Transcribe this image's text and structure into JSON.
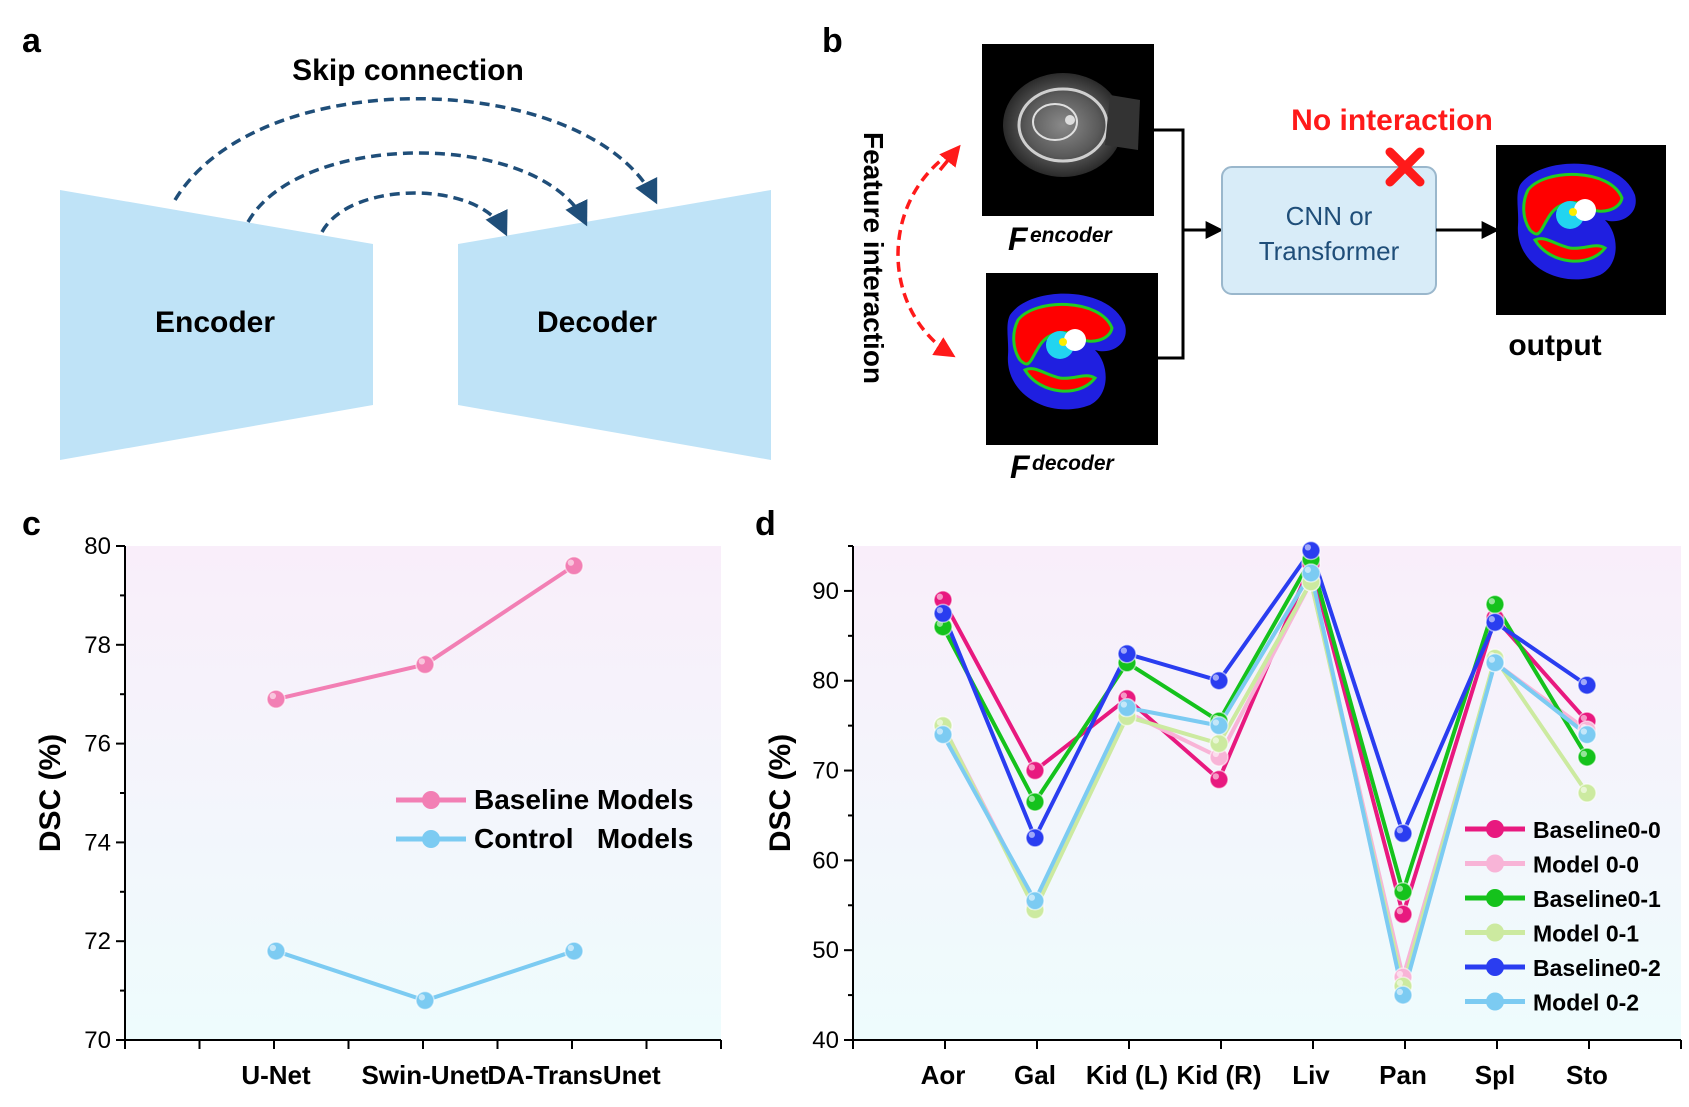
{
  "panels": {
    "a": {
      "letter": "a",
      "skip_label": "Skip connection",
      "encoder_label": "Encoder",
      "decoder_label": "Decoder",
      "colors": {
        "block": "#bfe3f7",
        "arrow": "#1f4e79"
      }
    },
    "b": {
      "letter": "b",
      "feature_interaction_label": "Feature interaction",
      "enc_F": "F",
      "enc_sup": "encoder",
      "dec_F": "F",
      "dec_sup": "decoder",
      "no_interaction_label": "No interaction",
      "cnn_line1": "CNN or",
      "cnn_line2": "Transformer",
      "output_label": "output",
      "colors": {
        "red": "#ff1a1a",
        "box_fill": "#d8ecf8",
        "box_text": "#1f4e79"
      }
    },
    "c": {
      "letter": "c"
    },
    "d": {
      "letter": "d"
    }
  },
  "chart_data": [
    {
      "id": "c",
      "type": "line",
      "categories": [
        "U-Net",
        "Swin-Unet",
        "DA-TransUnet"
      ],
      "series": [
        {
          "name": "Baseline Models",
          "values": [
            76.9,
            77.6,
            79.6
          ],
          "color": "#f27fb4"
        },
        {
          "name": "Control   Models",
          "values": [
            71.8,
            70.8,
            71.8
          ],
          "color": "#7ccbf2"
        }
      ],
      "ylabel": "DSC (%)",
      "ylim": [
        70,
        80
      ],
      "yticks": [
        70,
        72,
        74,
        76,
        78,
        80
      ],
      "legend": "center-right",
      "background_gradient": [
        "#f9eefa",
        "#eefcfd"
      ]
    },
    {
      "id": "d",
      "type": "line",
      "categories": [
        "Aor",
        "Gal",
        "Kid (L)",
        "Kid (R)",
        "Liv",
        "Pan",
        "Spl",
        "Sto"
      ],
      "series": [
        {
          "name": "Baseline0-0",
          "values": [
            89,
            70,
            78,
            69,
            93,
            54,
            87,
            75.5
          ],
          "color": "#e8197f"
        },
        {
          "name": "Model 0-0",
          "values": [
            75,
            55,
            76.5,
            71.5,
            91,
            47,
            82,
            74.5
          ],
          "color": "#f8b4d7"
        },
        {
          "name": "Baseline0-1",
          "values": [
            86,
            66.5,
            82,
            75.5,
            93.5,
            56.5,
            88.5,
            71.5
          ],
          "color": "#15c21c"
        },
        {
          "name": "Model 0-1",
          "values": [
            75,
            54.5,
            76,
            73,
            91,
            46,
            82.5,
            67.5
          ],
          "color": "#cceaa0"
        },
        {
          "name": "Baseline0-2",
          "values": [
            87.5,
            62.5,
            83,
            80,
            94.5,
            63,
            86.5,
            79.5
          ],
          "color": "#2a3df0"
        },
        {
          "name": "Model 0-2",
          "values": [
            74,
            55.5,
            77,
            75,
            92,
            45,
            82,
            74
          ],
          "color": "#7ccbf2"
        }
      ],
      "ylabel": "DSC (%)",
      "ylim": [
        40,
        95
      ],
      "yticks": [
        40,
        50,
        60,
        70,
        80,
        90
      ],
      "legend": "bottom-right",
      "background_gradient": [
        "#f9eefa",
        "#eefcfd"
      ]
    }
  ]
}
